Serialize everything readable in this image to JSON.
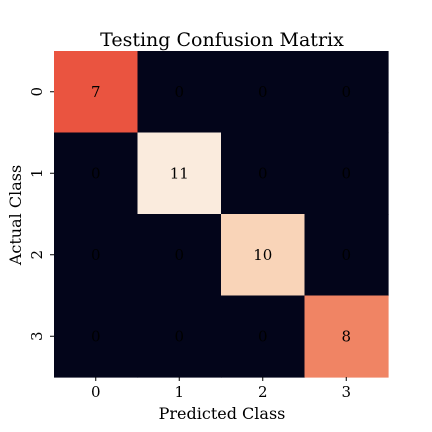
{
  "chart_data": {
    "type": "heatmap",
    "title": "Testing Confusion Matrix",
    "xlabel": "Predicted Class",
    "ylabel": "Actual Class",
    "x_categories": [
      "0",
      "1",
      "2",
      "3"
    ],
    "y_categories": [
      "0",
      "1",
      "2",
      "3"
    ],
    "values": [
      [
        7,
        0,
        0,
        0
      ],
      [
        0,
        11,
        0,
        0
      ],
      [
        0,
        0,
        10,
        0
      ],
      [
        0,
        0,
        0,
        8
      ]
    ],
    "colorbar": false,
    "colormap": "rocket",
    "cell_colors": {
      "0": "#03051a",
      "7": "#ea5440",
      "8": "#f08464",
      "10": "#f9d4b8",
      "11": "#faebdd"
    },
    "annotation_colors": {
      "dark_cell_text": "#ffffff",
      "light_cell_text": "#000000"
    }
  }
}
